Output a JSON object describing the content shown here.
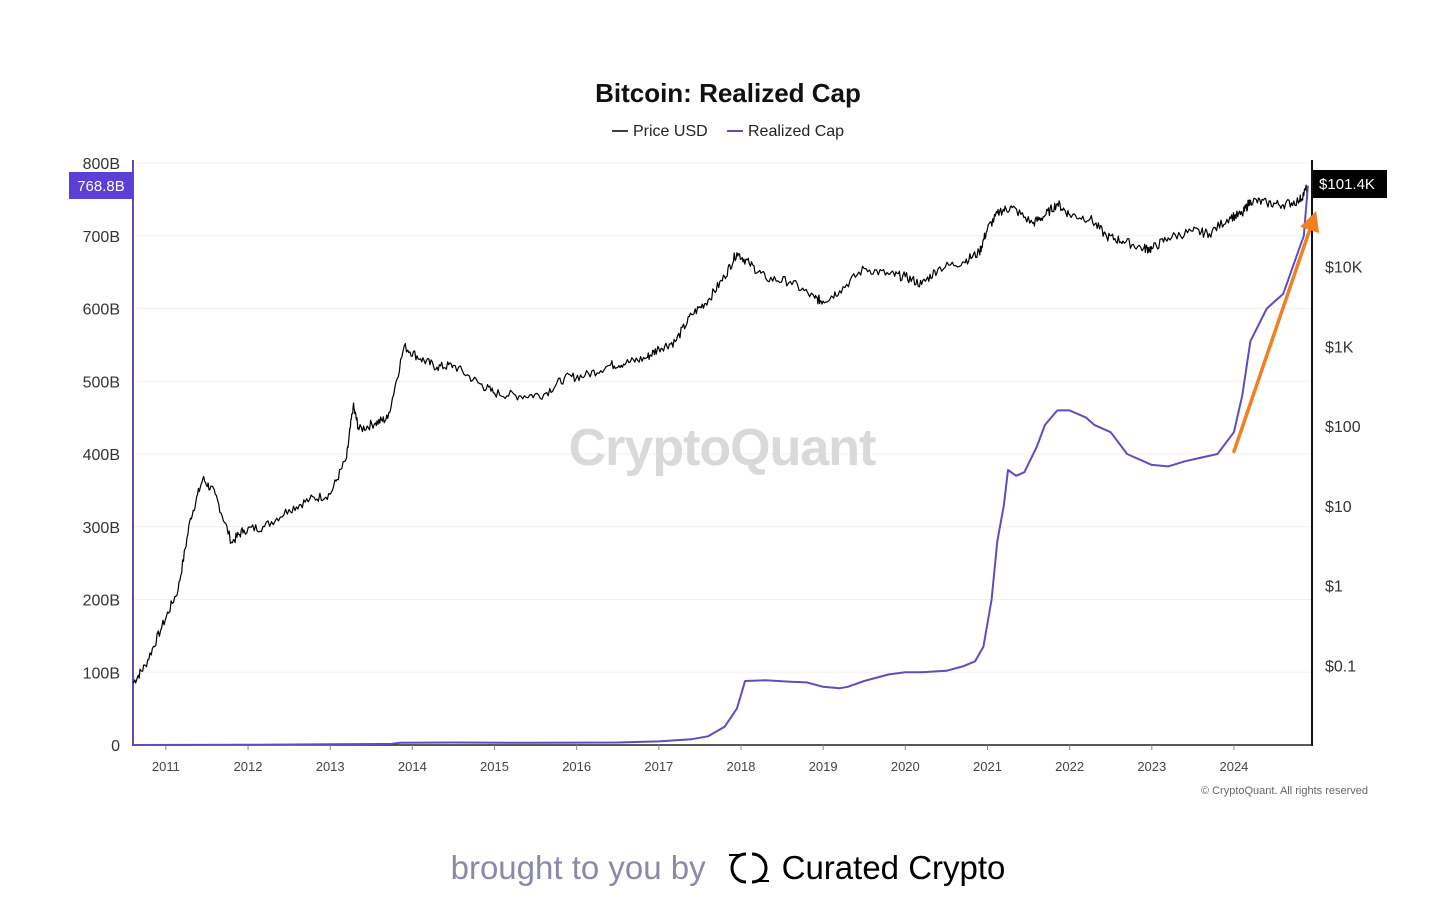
{
  "chart_data": {
    "type": "line",
    "title": "Bitcoin: Realized Cap",
    "legend": {
      "placement": "top-center"
    },
    "series": [
      {
        "name": "Price USD",
        "axis": "right",
        "color": "#000000",
        "x": [
          2010.6,
          2010.75,
          2010.95,
          2011.15,
          2011.3,
          2011.45,
          2011.6,
          2011.8,
          2011.95,
          2012.2,
          2012.5,
          2012.75,
          2013.0,
          2013.2,
          2013.28,
          2013.35,
          2013.55,
          2013.7,
          2013.9,
          2014.1,
          2014.3,
          2014.5,
          2014.8,
          2015.0,
          2015.3,
          2015.6,
          2015.85,
          2016.1,
          2016.4,
          2016.6,
          2016.85,
          2017.0,
          2017.2,
          2017.4,
          2017.6,
          2017.8,
          2017.95,
          2018.1,
          2018.3,
          2018.6,
          2018.9,
          2019.0,
          2019.2,
          2019.5,
          2019.8,
          2020.0,
          2020.2,
          2020.4,
          2020.7,
          2020.9,
          2021.0,
          2021.15,
          2021.3,
          2021.55,
          2021.7,
          2021.85,
          2022.0,
          2022.25,
          2022.45,
          2022.65,
          2022.9,
          2023.0,
          2023.2,
          2023.5,
          2023.7,
          2023.95,
          2024.1,
          2024.2,
          2024.4,
          2024.6,
          2024.8,
          2024.9
        ],
        "values": [
          0.06,
          0.1,
          0.3,
          0.9,
          7,
          22,
          14,
          3.5,
          5,
          5.5,
          9,
          12,
          14,
          40,
          180,
          90,
          110,
          125,
          1000,
          700,
          550,
          580,
          350,
          260,
          240,
          250,
          400,
          430,
          580,
          620,
          720,
          950,
          1150,
          2500,
          3800,
          7500,
          15000,
          11000,
          7200,
          6500,
          4000,
          3700,
          5000,
          9500,
          8000,
          7500,
          6000,
          9500,
          11500,
          15000,
          30000,
          50000,
          55000,
          35000,
          44000,
          62000,
          45000,
          40000,
          24000,
          21000,
          17000,
          16800,
          23000,
          28000,
          26000,
          42000,
          45000,
          68000,
          63000,
          60000,
          68000,
          101400
        ]
      },
      {
        "name": "Realized Cap",
        "axis": "left",
        "color": "#5b4fc0",
        "x": [
          2010.6,
          2012.0,
          2013.0,
          2013.75,
          2013.85,
          2014.5,
          2015.5,
          2016.5,
          2017.0,
          2017.4,
          2017.6,
          2017.8,
          2017.95,
          2018.05,
          2018.3,
          2018.6,
          2018.8,
          2019.0,
          2019.2,
          2019.3,
          2019.5,
          2019.8,
          2020.0,
          2020.2,
          2020.5,
          2020.7,
          2020.85,
          2020.95,
          2021.05,
          2021.12,
          2021.2,
          2021.25,
          2021.35,
          2021.45,
          2021.6,
          2021.7,
          2021.85,
          2022.0,
          2022.1,
          2022.2,
          2022.3,
          2022.5,
          2022.7,
          2022.9,
          2023.0,
          2023.2,
          2023.4,
          2023.6,
          2023.8,
          2024.0,
          2024.1,
          2024.2,
          2024.4,
          2024.6,
          2024.85,
          2024.9
        ],
        "values": [
          0,
          0.3,
          1,
          1.5,
          3,
          3.5,
          3,
          3.5,
          5,
          8,
          12,
          25,
          50,
          88,
          89,
          87,
          86,
          80,
          78,
          80,
          88,
          97,
          100,
          100,
          102,
          108,
          115,
          135,
          200,
          280,
          330,
          378,
          370,
          375,
          410,
          440,
          460,
          460,
          455,
          450,
          440,
          430,
          400,
          390,
          385,
          383,
          390,
          395,
          400,
          430,
          480,
          555,
          600,
          620,
          700,
          768.8
        ]
      }
    ],
    "axes": {
      "x": {
        "ticks": [
          "2011",
          "2012",
          "2013",
          "2014",
          "2015",
          "2016",
          "2017",
          "2018",
          "2019",
          "2020",
          "2021",
          "2022",
          "2023",
          "2024"
        ],
        "range": [
          2010.6,
          2024.95
        ]
      },
      "y_left": {
        "ticks": [
          "0",
          "100B",
          "200B",
          "300B",
          "400B",
          "500B",
          "600B",
          "700B",
          "800B"
        ],
        "range": [
          0,
          800
        ],
        "unit": "B"
      },
      "y_right": {
        "scale": "log",
        "ticks": [
          "$0.1",
          "$1",
          "$10",
          "$100",
          "$1K",
          "$10K"
        ],
        "range": [
          0.01,
          200000
        ]
      }
    },
    "current_labels": {
      "left": "768.8B",
      "right": "$101.4K"
    },
    "annotations": [
      {
        "type": "arrow",
        "color": "#f08024",
        "from": [
          2024.0,
          48
        ],
        "to": [
          2025.0,
          50000
        ]
      }
    ],
    "watermark": "CryptoQuant",
    "copyright": "© CryptoQuant. All rights reserved",
    "grid": true
  },
  "footer": {
    "text": "brought to you by",
    "brand": "Curated Crypto"
  },
  "colors": {
    "realized_cap": "#5b4fc0",
    "price": "#000000",
    "arrow": "#f08024",
    "footer_text": "#8a89a8"
  }
}
